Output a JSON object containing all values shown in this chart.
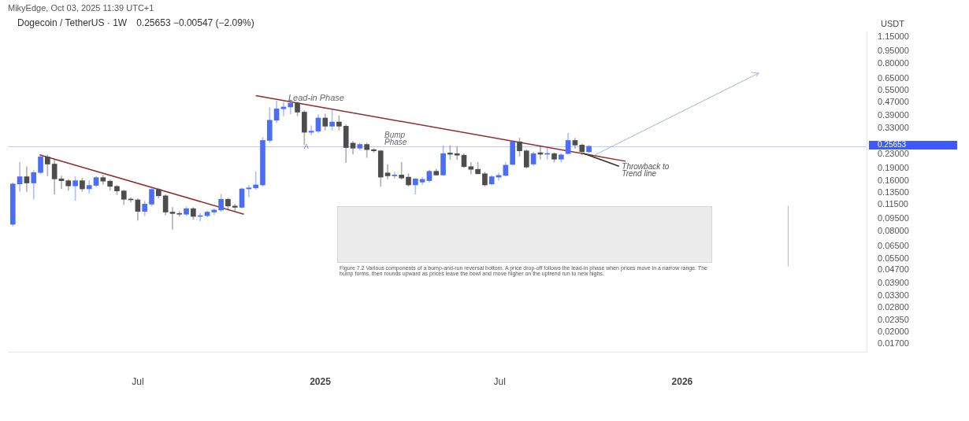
{
  "chart_data": {
    "type": "candlestick",
    "title": "Dogecoin / TetherUS · 1W",
    "subtitle": "0.25653  −0.00547 (−2.09%)",
    "ylabel": "USDT",
    "log": true,
    "annotations": [
      "MikyEdge, Oct 03, 2025 11:39 UTC+1",
      "Lead-in Phase",
      {
        "text": "A",
        "x": "2024-12-18",
        "y": 0.256
      },
      "Bump Phase",
      {
        "text": "Throwback to Trend line",
        "x": "2025-09-24",
        "y": 0.232
      },
      "Figure 7.2  Various components of a bump-and-run reversal bottom. A price drop-off follows the lead-in phase when prices move in a narrow range. The bump forms, then rounds upward as prices leave the bowl and move higher on the uptrend run to new highs."
    ],
    "xlim": [
      "2024-02-21",
      "2026-07-06"
    ],
    "ylim": [
      0.0153,
      1.24
    ],
    "xticks": [
      {
        "value": "2024-07",
        "label": "Jul"
      },
      {
        "value": "2025",
        "label": "2025"
      },
      {
        "value": "2025-07",
        "label": "Jul"
      },
      {
        "value": "2026",
        "label": "2026"
      }
    ],
    "yticks": [
      {
        "value": 1.15,
        "label": "1.15000"
      },
      {
        "value": 0.95,
        "label": "0.95000"
      },
      {
        "value": 0.8,
        "label": "0.80000"
      },
      {
        "value": 0.65,
        "label": "0.65000"
      },
      {
        "value": 0.55,
        "label": "0.55000"
      },
      {
        "value": 0.47,
        "label": "0.47000"
      },
      {
        "value": 0.39,
        "label": "0.39000"
      },
      {
        "value": 0.33,
        "label": "0.33000"
      },
      {
        "value": 0.23,
        "label": "0.23000"
      },
      {
        "value": 0.19,
        "label": "0.19000"
      },
      {
        "value": 0.16,
        "label": "0.16000"
      },
      {
        "value": 0.135,
        "label": "0.13500"
      },
      {
        "value": 0.115,
        "label": "0.11500"
      },
      {
        "value": 0.095,
        "label": "0.09500"
      },
      {
        "value": 0.08,
        "label": "0.08000"
      },
      {
        "value": 0.065,
        "label": "0.06500"
      },
      {
        "value": 0.055,
        "label": "0.05500"
      },
      {
        "value": 0.047,
        "label": "0.04700"
      },
      {
        "value": 0.039,
        "label": "0.03900"
      },
      {
        "value": 0.033,
        "label": "0.03300"
      },
      {
        "value": 0.028,
        "label": "0.02800"
      },
      {
        "value": 0.0235,
        "label": "0.02350"
      },
      {
        "value": 0.02,
        "label": "0.02000"
      },
      {
        "value": 0.017,
        "label": "0.01700"
      }
    ],
    "ref_lines": [
      {
        "axis": "y",
        "value": 0.25653,
        "label": "0.25653",
        "color": "#3d5afe"
      }
    ],
    "x": [
      "2024-02-26",
      "2024-03-04",
      "2024-03-11",
      "2024-03-18",
      "2024-03-25",
      "2024-04-01",
      "2024-04-08",
      "2024-04-15",
      "2024-04-22",
      "2024-04-29",
      "2024-05-06",
      "2024-05-13",
      "2024-05-20",
      "2024-05-27",
      "2024-06-03",
      "2024-06-10",
      "2024-06-17",
      "2024-06-24",
      "2024-07-01",
      "2024-07-08",
      "2024-07-15",
      "2024-07-22",
      "2024-07-29",
      "2024-08-05",
      "2024-08-12",
      "2024-08-19",
      "2024-08-26",
      "2024-09-02",
      "2024-09-09",
      "2024-09-16",
      "2024-09-23",
      "2024-09-30",
      "2024-10-07",
      "2024-10-14",
      "2024-10-21",
      "2024-10-28",
      "2024-11-04",
      "2024-11-11",
      "2024-11-18",
      "2024-11-25",
      "2024-12-02",
      "2024-12-09",
      "2024-12-16",
      "2024-12-23",
      "2024-12-30",
      "2025-01-06",
      "2025-01-13",
      "2025-01-20",
      "2025-01-27",
      "2025-02-03",
      "2025-02-10",
      "2025-02-17",
      "2025-02-24",
      "2025-03-03",
      "2025-03-10",
      "2025-03-17",
      "2025-03-24",
      "2025-03-31",
      "2025-04-07",
      "2025-04-14",
      "2025-04-21",
      "2025-04-28",
      "2025-05-05",
      "2025-05-12",
      "2025-05-19",
      "2025-05-26",
      "2025-06-02",
      "2025-06-09",
      "2025-06-16",
      "2025-06-23",
      "2025-06-30",
      "2025-07-07",
      "2025-07-14",
      "2025-07-21",
      "2025-07-28",
      "2025-08-04",
      "2025-08-11",
      "2025-08-18",
      "2025-08-25",
      "2025-09-01",
      "2025-09-08",
      "2025-09-15",
      "2025-09-22",
      "2025-09-29"
    ],
    "ohlc": [
      [
        0.088,
        0.156,
        0.086,
        0.153
      ],
      [
        0.153,
        0.206,
        0.138,
        0.169
      ],
      [
        0.169,
        0.194,
        0.138,
        0.155
      ],
      [
        0.155,
        0.185,
        0.124,
        0.179
      ],
      [
        0.179,
        0.23,
        0.175,
        0.222
      ],
      [
        0.222,
        0.228,
        0.171,
        0.201
      ],
      [
        0.201,
        0.213,
        0.133,
        0.164
      ],
      [
        0.164,
        0.171,
        0.143,
        0.16
      ],
      [
        0.16,
        0.163,
        0.14,
        0.149
      ],
      [
        0.149,
        0.169,
        0.122,
        0.16
      ],
      [
        0.16,
        0.166,
        0.138,
        0.143
      ],
      [
        0.143,
        0.16,
        0.135,
        0.15
      ],
      [
        0.15,
        0.17,
        0.147,
        0.167
      ],
      [
        0.167,
        0.172,
        0.152,
        0.159
      ],
      [
        0.159,
        0.162,
        0.14,
        0.148
      ],
      [
        0.148,
        0.15,
        0.132,
        0.139
      ],
      [
        0.139,
        0.141,
        0.115,
        0.124
      ],
      [
        0.124,
        0.127,
        0.119,
        0.123
      ],
      [
        0.123,
        0.125,
        0.093,
        0.105
      ],
      [
        0.105,
        0.121,
        0.099,
        0.116
      ],
      [
        0.116,
        0.145,
        0.113,
        0.142
      ],
      [
        0.142,
        0.144,
        0.126,
        0.13
      ],
      [
        0.13,
        0.132,
        0.1,
        0.104
      ],
      [
        0.104,
        0.111,
        0.082,
        0.102
      ],
      [
        0.102,
        0.105,
        0.098,
        0.101
      ],
      [
        0.101,
        0.112,
        0.099,
        0.109
      ],
      [
        0.109,
        0.111,
        0.094,
        0.098
      ],
      [
        0.098,
        0.102,
        0.092,
        0.099
      ],
      [
        0.099,
        0.106,
        0.097,
        0.104
      ],
      [
        0.104,
        0.109,
        0.1,
        0.107
      ],
      [
        0.107,
        0.133,
        0.105,
        0.124
      ],
      [
        0.124,
        0.126,
        0.107,
        0.113
      ],
      [
        0.113,
        0.116,
        0.106,
        0.111
      ],
      [
        0.111,
        0.145,
        0.11,
        0.143
      ],
      [
        0.143,
        0.15,
        0.128,
        0.145
      ],
      [
        0.145,
        0.181,
        0.142,
        0.151
      ],
      [
        0.151,
        0.29,
        0.148,
        0.278
      ],
      [
        0.278,
        0.437,
        0.27,
        0.367
      ],
      [
        0.367,
        0.478,
        0.355,
        0.429
      ],
      [
        0.429,
        0.47,
        0.39,
        0.44
      ],
      [
        0.44,
        0.484,
        0.4,
        0.464
      ],
      [
        0.464,
        0.474,
        0.39,
        0.41
      ],
      [
        0.41,
        0.42,
        0.263,
        0.311
      ],
      [
        0.311,
        0.34,
        0.3,
        0.316
      ],
      [
        0.316,
        0.395,
        0.31,
        0.378
      ],
      [
        0.378,
        0.4,
        0.32,
        0.338
      ],
      [
        0.338,
        0.425,
        0.32,
        0.358
      ],
      [
        0.358,
        0.39,
        0.32,
        0.338
      ],
      [
        0.338,
        0.345,
        0.205,
        0.252
      ],
      [
        0.268,
        0.275,
        0.23,
        0.25
      ],
      [
        0.25,
        0.268,
        0.244,
        0.263
      ],
      [
        0.263,
        0.268,
        0.22,
        0.245
      ],
      [
        0.245,
        0.248,
        0.236,
        0.241
      ],
      [
        0.241,
        0.243,
        0.148,
        0.168
      ],
      [
        0.178,
        0.2,
        0.164,
        0.171
      ],
      [
        0.171,
        0.18,
        0.165,
        0.173
      ],
      [
        0.173,
        0.206,
        0.163,
        0.166
      ],
      [
        0.168,
        0.176,
        0.148,
        0.151
      ],
      [
        0.151,
        0.165,
        0.133,
        0.164
      ],
      [
        0.157,
        0.168,
        0.152,
        0.163
      ],
      [
        0.16,
        0.185,
        0.157,
        0.182
      ],
      [
        0.182,
        0.188,
        0.172,
        0.173
      ],
      [
        0.173,
        0.259,
        0.172,
        0.232
      ],
      [
        0.234,
        0.259,
        0.214,
        0.23
      ],
      [
        0.232,
        0.255,
        0.214,
        0.227
      ],
      [
        0.227,
        0.232,
        0.191,
        0.194
      ],
      [
        0.194,
        0.206,
        0.175,
        0.187
      ],
      [
        0.187,
        0.206,
        0.175,
        0.176
      ],
      [
        0.176,
        0.18,
        0.148,
        0.151
      ],
      [
        0.153,
        0.172,
        0.151,
        0.169
      ],
      [
        0.168,
        0.178,
        0.161,
        0.172
      ],
      [
        0.172,
        0.205,
        0.17,
        0.198
      ],
      [
        0.2,
        0.278,
        0.198,
        0.273
      ],
      [
        0.273,
        0.287,
        0.224,
        0.241
      ],
      [
        0.241,
        0.245,
        0.19,
        0.193
      ],
      [
        0.201,
        0.237,
        0.197,
        0.232
      ],
      [
        0.235,
        0.259,
        0.215,
        0.23
      ],
      [
        0.23,
        0.25,
        0.215,
        0.232
      ],
      [
        0.232,
        0.235,
        0.206,
        0.215
      ],
      [
        0.215,
        0.232,
        0.206,
        0.228
      ],
      [
        0.232,
        0.307,
        0.23,
        0.278
      ],
      [
        0.278,
        0.286,
        0.249,
        0.261
      ],
      [
        0.261,
        0.265,
        0.228,
        0.238
      ],
      [
        0.238,
        0.26,
        0.235,
        0.25653
      ]
    ],
    "colors": [
      "#4c6ef5",
      "#4c6ef5",
      "#4d4d4d",
      "#4c6ef5",
      "#4c6ef5",
      "#4d4d4d",
      "#4d4d4d",
      "#4d4d4d",
      "#4d4d4d",
      "#4c6ef5",
      "#4d4d4d",
      "#4c6ef5",
      "#4c6ef5",
      "#4d4d4d",
      "#4d4d4d",
      "#4d4d4d",
      "#4d4d4d",
      "#4d4d4d",
      "#4d4d4d",
      "#4c6ef5",
      "#4c6ef5",
      "#4d4d4d",
      "#4d4d4d",
      "#4d4d4d",
      "#4d4d4d",
      "#4c6ef5",
      "#4d4d4d",
      "#4c6ef5",
      "#4c6ef5",
      "#4c6ef5",
      "#4c6ef5",
      "#4d4d4d",
      "#4d4d4d",
      "#4c6ef5",
      "#4c6ef5",
      "#4c6ef5",
      "#4c6ef5",
      "#4c6ef5",
      "#4c6ef5",
      "#4c6ef5",
      "#4c6ef5",
      "#4d4d4d",
      "#4d4d4d",
      "#4c6ef5",
      "#4c6ef5",
      "#4d4d4d",
      "#4c6ef5",
      "#4d4d4d",
      "#4d4d4d",
      "#4d4d4d",
      "#4c6ef5",
      "#4d4d4d",
      "#4d4d4d",
      "#4d4d4d",
      "#4d4d4d",
      "#4c6ef5",
      "#4d4d4d",
      "#4d4d4d",
      "#4c6ef5",
      "#4c6ef5",
      "#4c6ef5",
      "#4d4d4d",
      "#4c6ef5",
      "#4d4d4d",
      "#4d4d4d",
      "#4d4d4d",
      "#4d4d4d",
      "#4d4d4d",
      "#4d4d4d",
      "#4c6ef5",
      "#4c6ef5",
      "#4c6ef5",
      "#4c6ef5",
      "#4d4d4d",
      "#4d4d4d",
      "#4c6ef5",
      "#4d4d4d",
      "#4c6ef5",
      "#4d4d4d",
      "#4c6ef5",
      "#4c6ef5",
      "#4d4d4d",
      "#4d4d4d",
      "#4c6ef5"
    ],
    "series": [
      {
        "type": "line",
        "color": "#922b2b",
        "x": [
          "2024-03-24",
          "2024-10-16"
        ],
        "values": [
          0.228,
          0.101
        ]
      },
      {
        "type": "line",
        "color": "#922b2b",
        "x": [
          "2024-10-28",
          "2025-11-05"
        ],
        "values": [
          0.514,
          0.209
        ]
      }
    ]
  }
}
